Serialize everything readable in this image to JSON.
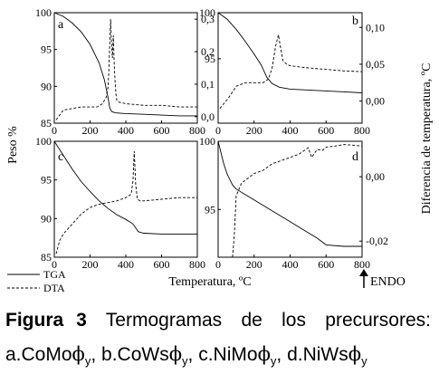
{
  "figure": {
    "ylabel_left": "Peso %",
    "ylabel_right": "Diferencia de temperatura, ºC",
    "xlabel": "Temperatura, ºC",
    "endo_label": "ENDO",
    "legend": [
      {
        "label": "TGA",
        "style": "solid"
      },
      {
        "label": "DTA",
        "style": "dashed"
      }
    ],
    "caption": {
      "label": "Figura",
      "number": "3",
      "text": "Termogramas de los precursores:",
      "line2": [
        {
          "text": "a.CoMo",
          "sym": "ϕ",
          "sub": "y",
          "sep": ", "
        },
        {
          "text": "b.CoWs",
          "sym": "ϕ",
          "sub": "y",
          "sep": ", "
        },
        {
          "text": "c.NiMo",
          "sym": "ϕ",
          "sub": "y",
          "sep": ", "
        },
        {
          "text": "d.NiWs",
          "sym": "ϕ",
          "sub": "y",
          "sep": ""
        }
      ]
    }
  },
  "chart_data": [
    {
      "panel": "a",
      "type": "line",
      "x_ticks": [
        "0",
        "200",
        "400",
        "600",
        "800"
      ],
      "y_left_ticks": [
        "100",
        "95",
        "90",
        "85"
      ],
      "y_right_ticks": [
        "0,3",
        "0,2",
        "0,1",
        "0,0"
      ],
      "xlim": [
        0,
        800
      ],
      "ylim_left": [
        85,
        100
      ],
      "ylim_right": [
        -0.02,
        0.32
      ],
      "series": [
        {
          "name": "TGA",
          "axis": "left",
          "x": [
            0,
            50,
            100,
            150,
            200,
            250,
            280,
            300,
            310,
            320,
            340,
            400,
            500,
            600,
            700,
            800
          ],
          "y": [
            100,
            99.5,
            98.6,
            97.4,
            95.7,
            93.2,
            90.9,
            88.5,
            87.1,
            86.6,
            86.4,
            86.3,
            86.2,
            86.1,
            86.0,
            86.0
          ]
        },
        {
          "name": "DTA",
          "axis": "right",
          "x": [
            10,
            50,
            100,
            150,
            200,
            240,
            270,
            290,
            300,
            305,
            310,
            315,
            320,
            325,
            330,
            335,
            340,
            345,
            350,
            360,
            400,
            500,
            600,
            700,
            800
          ],
          "y": [
            -0.01,
            0.02,
            0.025,
            0.03,
            0.03,
            0.03,
            0.04,
            0.06,
            0.09,
            0.14,
            0.22,
            0.3,
            0.23,
            0.18,
            0.25,
            0.16,
            0.11,
            0.07,
            0.05,
            0.045,
            0.04,
            0.035,
            0.035,
            0.03,
            0.03
          ]
        }
      ]
    },
    {
      "panel": "b",
      "type": "line",
      "x_ticks": [
        "0",
        "200",
        "400",
        "600",
        "800"
      ],
      "y_left_ticks": [
        "100",
        "95"
      ],
      "y_right_ticks": [
        "0,10",
        "0,05",
        "0,00"
      ],
      "xlim": [
        0,
        800
      ],
      "ylim_left": [
        88,
        100
      ],
      "ylim_right": [
        -0.03,
        0.12
      ],
      "series": [
        {
          "name": "TGA",
          "axis": "left",
          "x": [
            0,
            50,
            100,
            150,
            200,
            240,
            270,
            300,
            340,
            400,
            500,
            600,
            700,
            800
          ],
          "y": [
            100,
            99.3,
            98.2,
            96.9,
            95.5,
            94.3,
            93.0,
            92.3,
            91.9,
            91.7,
            91.6,
            91.5,
            91.4,
            91.3
          ]
        },
        {
          "name": "DTA",
          "axis": "right",
          "x": [
            10,
            60,
            100,
            150,
            200,
            250,
            280,
            300,
            320,
            335,
            345,
            360,
            380,
            400,
            500,
            600,
            700,
            800
          ],
          "y": [
            -0.01,
            0.005,
            0.02,
            0.025,
            0.025,
            0.025,
            0.03,
            0.045,
            0.075,
            0.09,
            0.075,
            0.055,
            0.05,
            0.048,
            0.045,
            0.043,
            0.041,
            0.04
          ]
        }
      ]
    },
    {
      "panel": "c",
      "type": "line",
      "x_ticks": [
        "0",
        "200",
        "400",
        "600",
        "800"
      ],
      "y_left_ticks": [
        "100",
        "95",
        "90",
        "85"
      ],
      "xlim": [
        0,
        800
      ],
      "ylim_left": [
        85,
        100
      ],
      "ylim_right": [
        -0.05,
        0.3
      ],
      "series": [
        {
          "name": "TGA",
          "axis": "left",
          "x": [
            0,
            50,
            100,
            150,
            200,
            250,
            300,
            350,
            400,
            440,
            470,
            500,
            600,
            700,
            800
          ],
          "y": [
            100,
            98.2,
            96.4,
            94.8,
            93.5,
            92.3,
            91.3,
            90.5,
            89.9,
            89.3,
            88.3,
            88.1,
            88.0,
            88.0,
            88.0
          ]
        },
        {
          "name": "DTA",
          "axis": "right",
          "x": [
            10,
            30,
            50,
            100,
            150,
            200,
            250,
            300,
            350,
            400,
            430,
            440,
            447,
            455,
            465,
            480,
            500,
            600,
            700,
            800
          ],
          "y": [
            -0.04,
            0.0,
            0.02,
            0.05,
            0.08,
            0.1,
            0.11,
            0.115,
            0.12,
            0.13,
            0.14,
            0.18,
            0.27,
            0.17,
            0.125,
            0.12,
            0.12,
            0.125,
            0.13,
            0.13
          ]
        }
      ]
    },
    {
      "panel": "d",
      "type": "line",
      "x_ticks": [
        "0",
        "200",
        "400",
        "600",
        "800"
      ],
      "y_left_ticks": [
        "100",
        "95"
      ],
      "y_right_ticks": [
        "0,00",
        "-0,02"
      ],
      "xlim": [
        0,
        800
      ],
      "ylim_left": [
        91.5,
        100
      ],
      "ylim_right": [
        -0.025,
        0.011
      ],
      "series": [
        {
          "name": "TGA",
          "axis": "left",
          "x": [
            0,
            30,
            50,
            80,
            100,
            150,
            200,
            300,
            400,
            500,
            550,
            600,
            700,
            800
          ],
          "y": [
            100,
            98.4,
            97.6,
            96.8,
            96.5,
            96.1,
            95.7,
            94.9,
            94.1,
            93.3,
            92.9,
            92.4,
            92.3,
            92.3
          ]
        },
        {
          "name": "DTA",
          "axis": "right",
          "x": [
            80,
            90,
            100,
            130,
            200,
            250,
            300,
            350,
            400,
            450,
            500,
            520,
            550,
            580,
            600,
            650,
            700,
            750,
            800
          ],
          "y": [
            -0.025,
            -0.018,
            -0.006,
            -0.002,
            0.001,
            0.002,
            0.004,
            0.005,
            0.006,
            0.007,
            0.009,
            0.006,
            0.0085,
            0.0082,
            0.0092,
            0.0095,
            0.01,
            0.0098,
            0.0095
          ]
        }
      ]
    }
  ]
}
